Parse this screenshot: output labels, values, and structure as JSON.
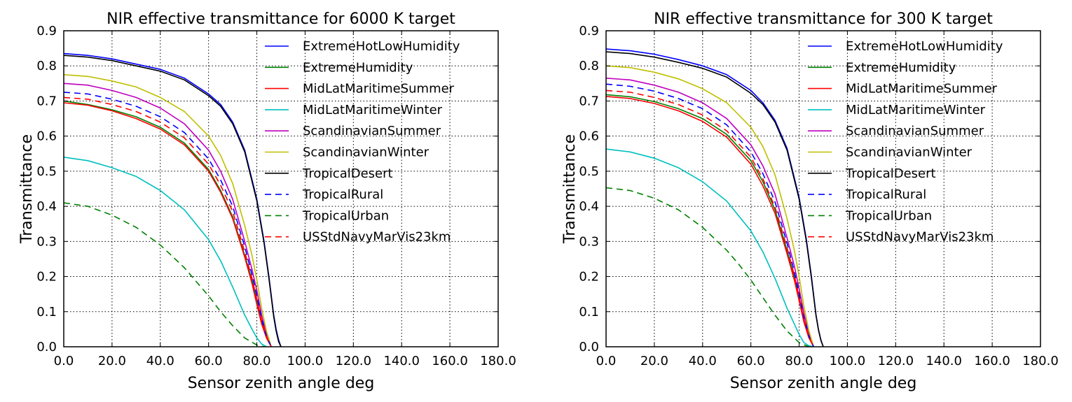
{
  "chart_data": [
    {
      "type": "line",
      "title": "NIR effective transmittance for 6000 K target",
      "xlabel": "Sensor zenith angle deg",
      "ylabel": "Transmittance",
      "xlim": [
        0,
        180
      ],
      "ylim": [
        0,
        0.9
      ],
      "xticks": [
        "0.0",
        "20.0",
        "40.0",
        "60.0",
        "80.0",
        "100.0",
        "120.0",
        "140.0",
        "160.0",
        "180.0"
      ],
      "yticks": [
        "0.0",
        "0.1",
        "0.2",
        "0.3",
        "0.4",
        "0.5",
        "0.6",
        "0.7",
        "0.8",
        "0.9"
      ],
      "grid": true,
      "legend_position": "top-right",
      "series": [
        {
          "name": "ExtremeHotLowHumidity",
          "color": "#0000ff",
          "dash": "solid",
          "x": [
            0,
            10,
            20,
            30,
            40,
            50,
            60,
            65,
            70,
            75,
            80,
            83,
            85,
            87,
            88,
            89,
            90
          ],
          "y": [
            0.835,
            0.83,
            0.82,
            0.805,
            0.79,
            0.765,
            0.72,
            0.69,
            0.64,
            0.56,
            0.42,
            0.3,
            0.2,
            0.09,
            0.05,
            0.02,
            0.0
          ]
        },
        {
          "name": "ExtremeHumidity",
          "color": "#008000",
          "dash": "solid",
          "x": [
            0,
            10,
            20,
            30,
            40,
            50,
            60,
            65,
            70,
            75,
            78,
            80,
            82,
            84,
            86
          ],
          "y": [
            0.7,
            0.69,
            0.675,
            0.655,
            0.625,
            0.58,
            0.505,
            0.445,
            0.37,
            0.26,
            0.19,
            0.13,
            0.07,
            0.03,
            0.0
          ]
        },
        {
          "name": "MidLatMaritimeSummer",
          "color": "#ff0000",
          "dash": "solid",
          "x": [
            0,
            10,
            20,
            30,
            40,
            50,
            60,
            65,
            70,
            75,
            78,
            80,
            82,
            84,
            86
          ],
          "y": [
            0.695,
            0.688,
            0.672,
            0.65,
            0.62,
            0.575,
            0.5,
            0.44,
            0.365,
            0.255,
            0.18,
            0.12,
            0.065,
            0.025,
            0.0
          ]
        },
        {
          "name": "MidLatMaritimeWinter",
          "color": "#00bfbf",
          "dash": "solid",
          "x": [
            0,
            10,
            20,
            30,
            40,
            50,
            60,
            65,
            70,
            75,
            78,
            80,
            82,
            84
          ],
          "y": [
            0.54,
            0.53,
            0.51,
            0.485,
            0.445,
            0.39,
            0.305,
            0.245,
            0.17,
            0.09,
            0.05,
            0.025,
            0.008,
            0.0
          ]
        },
        {
          "name": "ScandinavianSummer",
          "color": "#bf00bf",
          "dash": "solid",
          "x": [
            0,
            10,
            20,
            30,
            40,
            50,
            60,
            65,
            70,
            75,
            78,
            80,
            82,
            84,
            86
          ],
          "y": [
            0.75,
            0.745,
            0.73,
            0.71,
            0.68,
            0.635,
            0.56,
            0.5,
            0.42,
            0.3,
            0.22,
            0.16,
            0.09,
            0.035,
            0.0
          ]
        },
        {
          "name": "ScandinavianWinter",
          "color": "#bfbf00",
          "dash": "solid",
          "x": [
            0,
            10,
            20,
            30,
            40,
            50,
            60,
            65,
            70,
            75,
            78,
            80,
            82,
            84,
            86
          ],
          "y": [
            0.775,
            0.77,
            0.757,
            0.74,
            0.71,
            0.67,
            0.6,
            0.545,
            0.465,
            0.345,
            0.26,
            0.19,
            0.11,
            0.045,
            0.0
          ]
        },
        {
          "name": "TropicalDesert",
          "color": "#000000",
          "dash": "solid",
          "x": [
            0,
            10,
            20,
            30,
            40,
            50,
            60,
            65,
            70,
            75,
            80,
            83,
            85,
            87,
            88,
            89,
            90
          ],
          "y": [
            0.83,
            0.825,
            0.815,
            0.8,
            0.785,
            0.76,
            0.715,
            0.685,
            0.635,
            0.555,
            0.415,
            0.295,
            0.195,
            0.085,
            0.045,
            0.015,
            0.0
          ]
        },
        {
          "name": "TropicalRural",
          "color": "#0000ff",
          "dash": "dashed",
          "x": [
            0,
            10,
            20,
            30,
            40,
            50,
            60,
            65,
            70,
            75,
            78,
            80,
            82,
            84,
            86
          ],
          "y": [
            0.725,
            0.72,
            0.705,
            0.685,
            0.655,
            0.61,
            0.535,
            0.475,
            0.4,
            0.285,
            0.205,
            0.145,
            0.08,
            0.03,
            0.0
          ]
        },
        {
          "name": "TropicalUrban",
          "color": "#008000",
          "dash": "dashed",
          "x": [
            0,
            10,
            20,
            30,
            40,
            50,
            55,
            60,
            65,
            70,
            75,
            80,
            83
          ],
          "y": [
            0.41,
            0.4,
            0.375,
            0.34,
            0.29,
            0.225,
            0.185,
            0.145,
            0.1,
            0.06,
            0.025,
            0.005,
            0.0
          ]
        },
        {
          "name": "USStdNavyMarVis23km",
          "color": "#ff0000",
          "dash": "dashed",
          "x": [
            0,
            10,
            20,
            30,
            40,
            50,
            60,
            65,
            70,
            75,
            78,
            80,
            82,
            84,
            86
          ],
          "y": [
            0.71,
            0.705,
            0.69,
            0.67,
            0.64,
            0.595,
            0.52,
            0.46,
            0.385,
            0.27,
            0.195,
            0.135,
            0.075,
            0.028,
            0.0
          ]
        }
      ]
    },
    {
      "type": "line",
      "title": "NIR effective transmittance for 300 K target",
      "xlabel": "Sensor zenith angle deg",
      "ylabel": "Transmittance",
      "xlim": [
        0,
        180
      ],
      "ylim": [
        0,
        0.9
      ],
      "xticks": [
        "0.0",
        "20.0",
        "40.0",
        "60.0",
        "80.0",
        "100.0",
        "120.0",
        "140.0",
        "160.0",
        "180.0"
      ],
      "yticks": [
        "0.0",
        "0.1",
        "0.2",
        "0.3",
        "0.4",
        "0.5",
        "0.6",
        "0.7",
        "0.8",
        "0.9"
      ],
      "grid": true,
      "legend_position": "top-right",
      "series": [
        {
          "name": "ExtremeHotLowHumidity",
          "color": "#0000ff",
          "dash": "solid",
          "x": [
            0,
            10,
            20,
            30,
            40,
            50,
            60,
            65,
            70,
            75,
            80,
            83,
            85,
            87,
            88,
            89,
            90
          ],
          "y": [
            0.848,
            0.843,
            0.833,
            0.818,
            0.8,
            0.775,
            0.73,
            0.695,
            0.645,
            0.565,
            0.425,
            0.305,
            0.205,
            0.09,
            0.05,
            0.02,
            0.0
          ]
        },
        {
          "name": "ExtremeHumidity",
          "color": "#008000",
          "dash": "solid",
          "x": [
            0,
            10,
            20,
            30,
            40,
            50,
            60,
            65,
            70,
            75,
            78,
            80,
            82,
            84,
            86
          ],
          "y": [
            0.718,
            0.712,
            0.698,
            0.678,
            0.65,
            0.605,
            0.53,
            0.47,
            0.39,
            0.275,
            0.2,
            0.14,
            0.075,
            0.028,
            0.0
          ]
        },
        {
          "name": "MidLatMaritimeSummer",
          "color": "#ff0000",
          "dash": "solid",
          "x": [
            0,
            10,
            20,
            30,
            40,
            50,
            60,
            65,
            70,
            75,
            78,
            80,
            82,
            84,
            86
          ],
          "y": [
            0.713,
            0.707,
            0.693,
            0.672,
            0.642,
            0.597,
            0.52,
            0.458,
            0.38,
            0.265,
            0.19,
            0.13,
            0.07,
            0.026,
            0.0
          ]
        },
        {
          "name": "MidLatMaritimeWinter",
          "color": "#00bfbf",
          "dash": "solid",
          "x": [
            0,
            10,
            20,
            30,
            40,
            50,
            60,
            65,
            70,
            75,
            78,
            80,
            82,
            84,
            86
          ],
          "y": [
            0.563,
            0.555,
            0.537,
            0.51,
            0.47,
            0.415,
            0.33,
            0.27,
            0.195,
            0.11,
            0.065,
            0.035,
            0.012,
            0.003,
            0.0
          ]
        },
        {
          "name": "ScandinavianSummer",
          "color": "#bf00bf",
          "dash": "solid",
          "x": [
            0,
            10,
            20,
            30,
            40,
            50,
            60,
            65,
            70,
            75,
            78,
            80,
            82,
            84,
            86
          ],
          "y": [
            0.765,
            0.76,
            0.745,
            0.725,
            0.695,
            0.65,
            0.575,
            0.515,
            0.435,
            0.31,
            0.23,
            0.165,
            0.095,
            0.037,
            0.0
          ]
        },
        {
          "name": "ScandinavianWinter",
          "color": "#bfbf00",
          "dash": "solid",
          "x": [
            0,
            10,
            20,
            30,
            40,
            50,
            60,
            65,
            70,
            75,
            78,
            80,
            82,
            84,
            86
          ],
          "y": [
            0.8,
            0.795,
            0.782,
            0.763,
            0.735,
            0.695,
            0.625,
            0.57,
            0.49,
            0.365,
            0.275,
            0.2,
            0.115,
            0.047,
            0.0
          ]
        },
        {
          "name": "TropicalDesert",
          "color": "#000000",
          "dash": "solid",
          "x": [
            0,
            10,
            20,
            30,
            40,
            50,
            60,
            65,
            70,
            75,
            80,
            83,
            85,
            87,
            88,
            89,
            90
          ],
          "y": [
            0.84,
            0.835,
            0.825,
            0.81,
            0.793,
            0.768,
            0.722,
            0.69,
            0.64,
            0.56,
            0.42,
            0.3,
            0.2,
            0.088,
            0.048,
            0.018,
            0.0
          ]
        },
        {
          "name": "TropicalRural",
          "color": "#0000ff",
          "dash": "dashed",
          "x": [
            0,
            10,
            20,
            30,
            40,
            50,
            60,
            65,
            70,
            75,
            78,
            80,
            82,
            84,
            86
          ],
          "y": [
            0.748,
            0.742,
            0.728,
            0.707,
            0.678,
            0.632,
            0.555,
            0.493,
            0.413,
            0.295,
            0.213,
            0.15,
            0.083,
            0.032,
            0.0
          ]
        },
        {
          "name": "TropicalUrban",
          "color": "#008000",
          "dash": "dashed",
          "x": [
            0,
            10,
            20,
            30,
            40,
            50,
            55,
            60,
            65,
            70,
            75,
            80,
            84
          ],
          "y": [
            0.453,
            0.445,
            0.423,
            0.39,
            0.34,
            0.275,
            0.235,
            0.19,
            0.14,
            0.09,
            0.045,
            0.012,
            0.0
          ]
        },
        {
          "name": "USStdNavyMarVis23km",
          "color": "#ff0000",
          "dash": "dashed",
          "x": [
            0,
            10,
            20,
            30,
            40,
            50,
            60,
            65,
            70,
            75,
            78,
            80,
            82,
            84,
            86
          ],
          "y": [
            0.73,
            0.725,
            0.71,
            0.69,
            0.66,
            0.615,
            0.54,
            0.478,
            0.398,
            0.282,
            0.203,
            0.142,
            0.078,
            0.029,
            0.0
          ]
        }
      ]
    }
  ]
}
